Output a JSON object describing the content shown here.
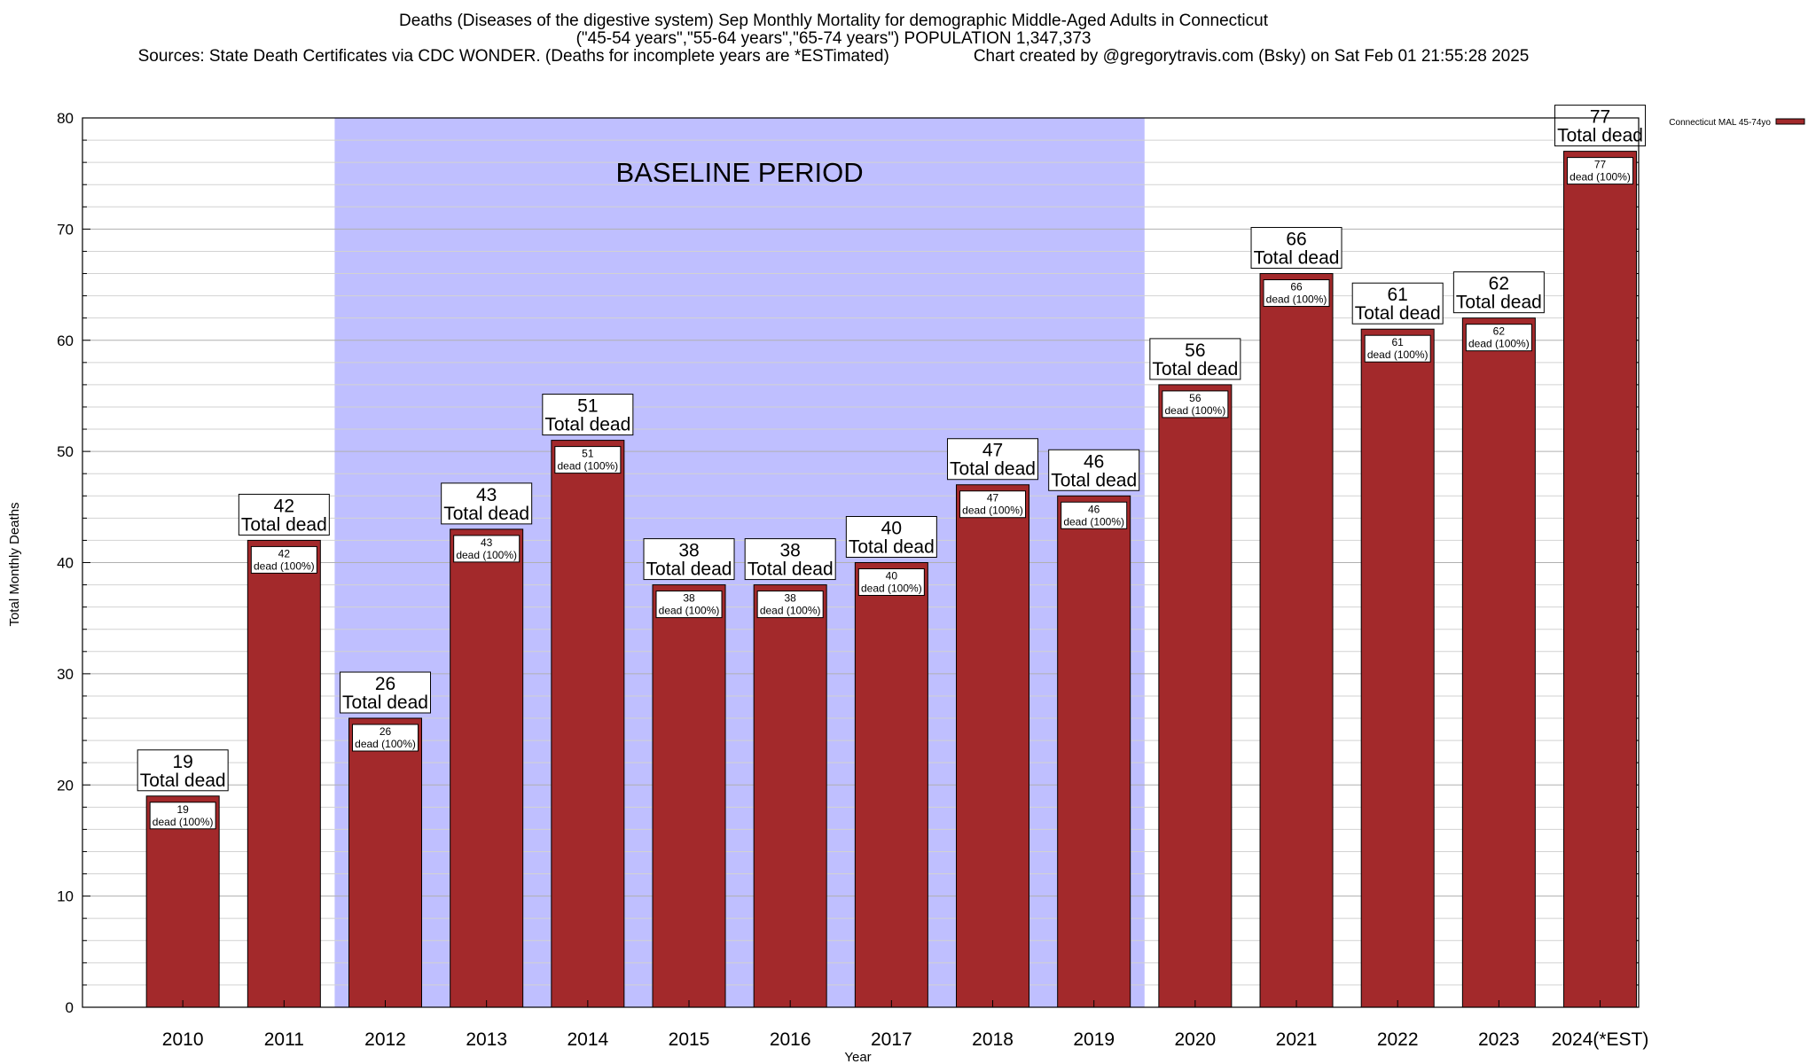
{
  "chart_data": {
    "type": "bar",
    "title": "Deaths (Diseases of the digestive system) Sep Monthly Mortality for demographic Middle-Aged Adults in Connecticut",
    "subtitle": "(\"45-54 years\",\"55-64 years\",\"65-74 years\") POPULATION 1,347,373",
    "sources_line": "Sources: State Death Certificates via CDC WONDER. (Deaths for incomplete years are *ESTimated)",
    "credit_line": "Chart created by @gregorytravis.com (Bsky) on Sat Feb 01 21:55:28 2025",
    "xlabel": "Year",
    "ylabel": "Total Monthly Deaths",
    "ylim": [
      0,
      80
    ],
    "yticks": [
      0,
      10,
      20,
      30,
      40,
      50,
      60,
      70,
      80
    ],
    "grid": true,
    "legend_position": "top-right",
    "baseline": {
      "label": "BASELINE PERIOD",
      "start": "2012",
      "end": "2019"
    },
    "categories": [
      "2010",
      "2011",
      "2012",
      "2013",
      "2014",
      "2015",
      "2016",
      "2017",
      "2018",
      "2019",
      "2020",
      "2021",
      "2022",
      "2023",
      "2024(*EST)"
    ],
    "series": [
      {
        "name": "Connecticut MAL 45-74yo",
        "values": [
          19,
          42,
          26,
          43,
          51,
          38,
          38,
          40,
          47,
          46,
          56,
          66,
          61,
          62,
          77
        ]
      }
    ],
    "label_total": "Total dead",
    "label_inner": "dead (100%)",
    "colors": {
      "bar": "#a3292b",
      "baseline": "#bfbfff",
      "grid": "#c8c8c8"
    }
  }
}
